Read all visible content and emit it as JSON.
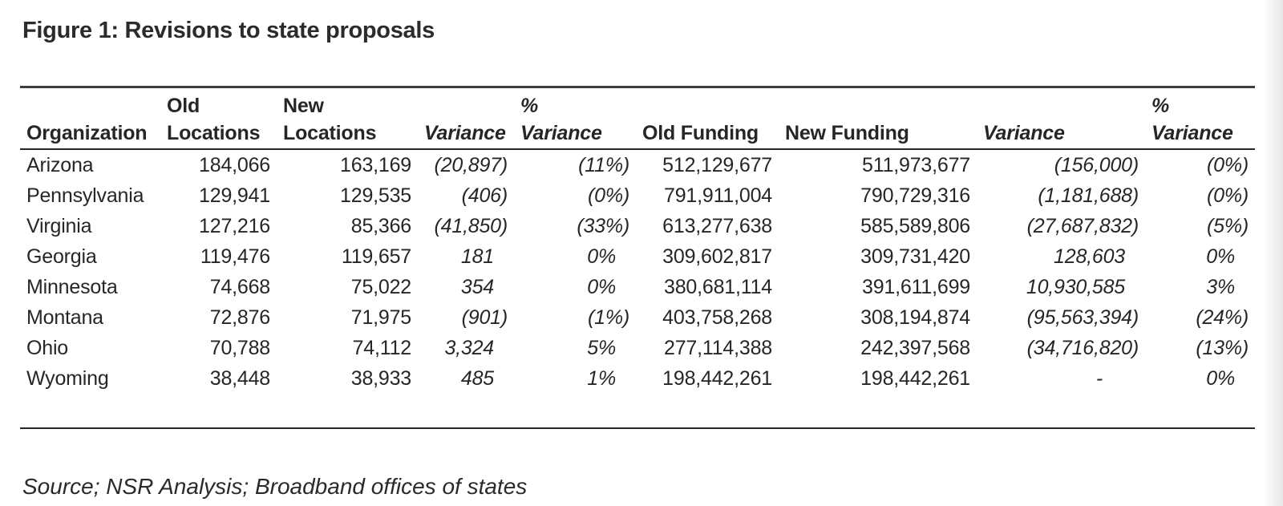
{
  "figure": {
    "title": "Figure 1: Revisions to state proposals"
  },
  "table": {
    "columns": [
      {
        "id": "organization",
        "line1": "",
        "line2": "Organization",
        "italic": false
      },
      {
        "id": "old-locations",
        "line1": "Old",
        "line2": "Locations",
        "italic": false
      },
      {
        "id": "new-locations",
        "line1": "New",
        "line2": "Locations",
        "italic": false
      },
      {
        "id": "variance-locations",
        "line1": "",
        "line2": "Variance",
        "italic": true
      },
      {
        "id": "pct-variance-locations",
        "line1": "%",
        "line2": "Variance",
        "italic": true
      },
      {
        "id": "old-funding",
        "line1": "",
        "line2": "Old Funding",
        "italic": false
      },
      {
        "id": "new-funding",
        "line1": "",
        "line2": "New Funding",
        "italic": false
      },
      {
        "id": "variance-funding",
        "line1": "",
        "line2": "Variance",
        "italic": true
      },
      {
        "id": "pct-variance-funding",
        "line1": "%",
        "line2": "Variance",
        "italic": true
      }
    ],
    "rows": [
      [
        "Arizona",
        "184,066",
        "163,169",
        "(20,897)",
        "(11%)",
        "512,129,677",
        "511,973,677",
        "(156,000)",
        "(0%)"
      ],
      [
        "Pennsylvania",
        "129,941",
        "129,535",
        "(406)",
        "(0%)",
        "791,911,004",
        "790,729,316",
        "(1,181,688)",
        "(0%)"
      ],
      [
        "Virginia",
        "127,216",
        "85,366",
        "(41,850)",
        "(33%)",
        "613,277,638",
        "585,589,806",
        "(27,687,832)",
        "(5%)"
      ],
      [
        "Georgia",
        "119,476",
        "119,657",
        "181",
        "0%",
        "309,602,817",
        "309,731,420",
        "128,603",
        "0%"
      ],
      [
        "Minnesota",
        "74,668",
        "75,022",
        "354",
        "0%",
        "380,681,114",
        "391,611,699",
        "10,930,585",
        "3%"
      ],
      [
        "Montana",
        "72,876",
        "71,975",
        "(901)",
        "(1%)",
        "403,758,268",
        "308,194,874",
        "(95,563,394)",
        "(24%)"
      ],
      [
        "Ohio",
        "70,788",
        "74,112",
        "3,324",
        "5%",
        "277,114,388",
        "242,397,568",
        "(34,716,820)",
        "(13%)"
      ],
      [
        "Wyoming",
        "38,448",
        "38,933",
        "485",
        "1%",
        "198,442,261",
        "198,442,261",
        "-",
        "0%"
      ]
    ]
  },
  "source": "Source; NSR Analysis; Broadband offices of states"
}
